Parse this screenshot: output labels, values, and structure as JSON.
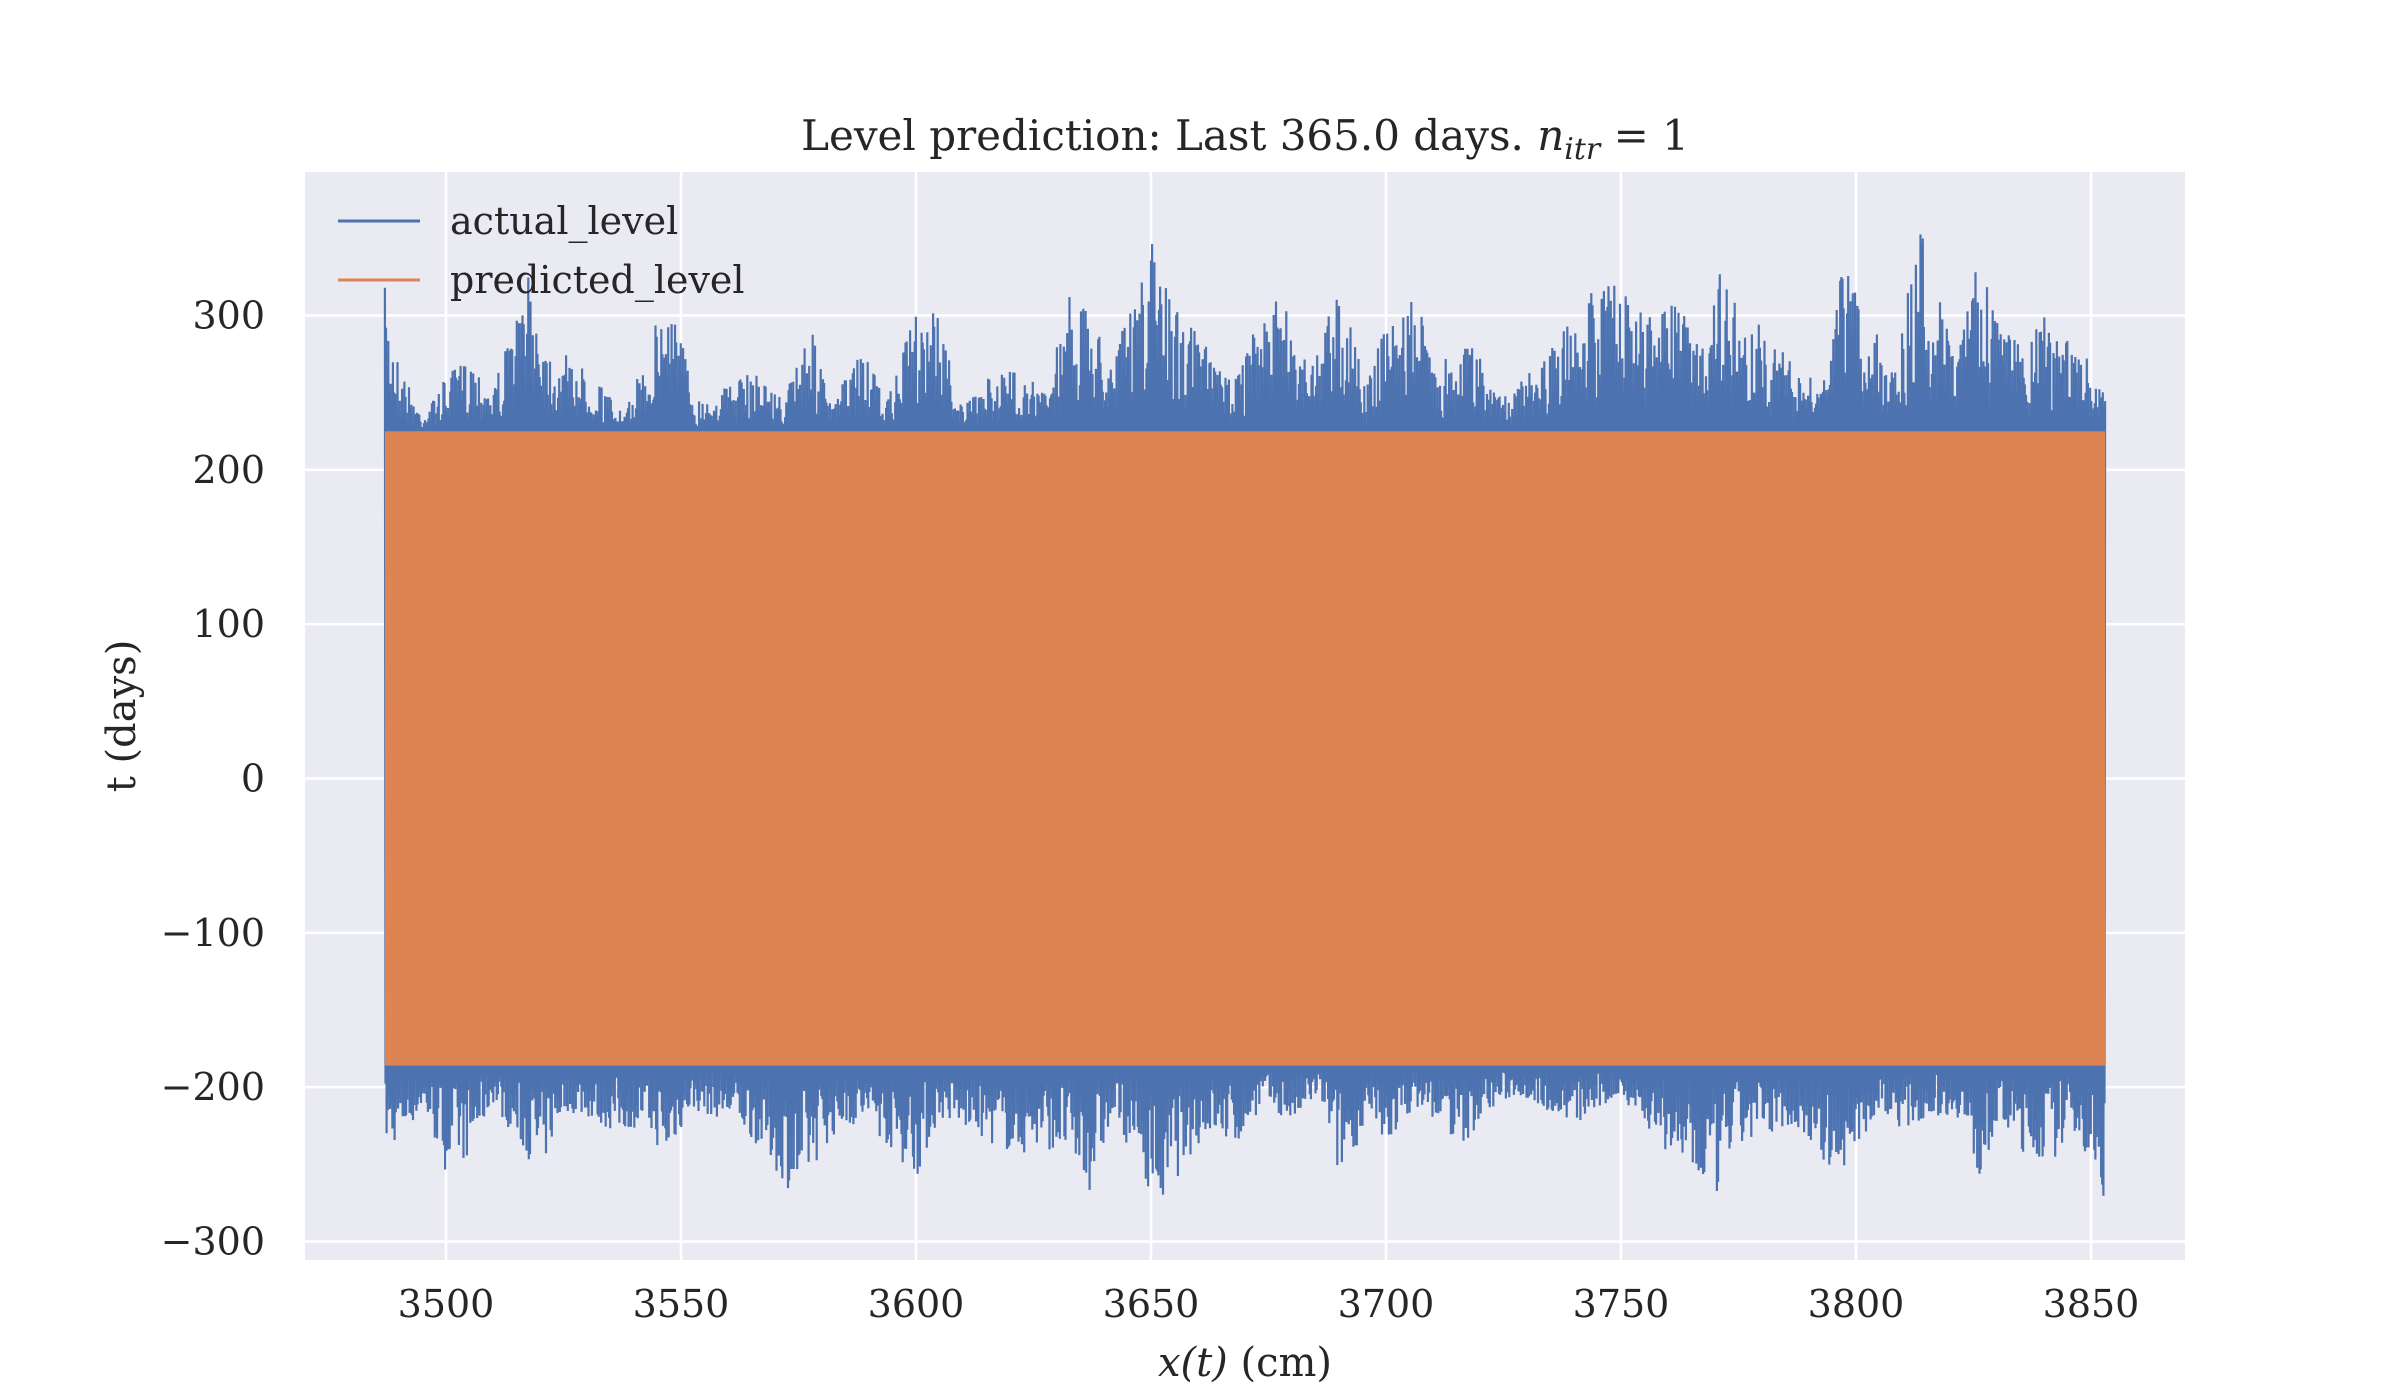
{
  "chart_data": {
    "type": "line",
    "title": "Level prediction: Last 365.0 days. ",
    "title_math": {
      "base": "n",
      "sub": "itr",
      "rhs": " = 1"
    },
    "xlabel": {
      "math": "x(t)",
      "unit": " (cm)"
    },
    "ylabel": "t (days)",
    "xlim": [
      3470,
      3870
    ],
    "ylim": [
      -312,
      393
    ],
    "xticks": [
      3500,
      3550,
      3600,
      3650,
      3700,
      3750,
      3800,
      3850
    ],
    "yticks": [
      300,
      200,
      100,
      0,
      -100,
      -200,
      -300
    ],
    "ytick_labels": [
      "300",
      "200",
      "100",
      "0",
      "−100",
      "−200",
      "−300"
    ],
    "grid": true,
    "legend_position": "top-left",
    "background_color": "#eaeaf2",
    "x_range": [
      3487,
      3853
    ],
    "series": [
      {
        "name": "actual_level",
        "color": "#4c72b0",
        "upper_envelope": [
          [
            3487,
            318
          ],
          [
            3490,
            270
          ],
          [
            3495,
            235
          ],
          [
            3500,
            260
          ],
          [
            3505,
            275
          ],
          [
            3510,
            255
          ],
          [
            3515,
            300
          ],
          [
            3518,
            330
          ],
          [
            3522,
            280
          ],
          [
            3527,
            272
          ],
          [
            3532,
            260
          ],
          [
            3538,
            235
          ],
          [
            3545,
            300
          ],
          [
            3548,
            320
          ],
          [
            3553,
            245
          ],
          [
            3560,
            255
          ],
          [
            3566,
            265
          ],
          [
            3572,
            245
          ],
          [
            3577,
            300
          ],
          [
            3582,
            240
          ],
          [
            3588,
            280
          ],
          [
            3594,
            245
          ],
          [
            3600,
            305
          ],
          [
            3604,
            310
          ],
          [
            3610,
            240
          ],
          [
            3617,
            265
          ],
          [
            3622,
            265
          ],
          [
            3628,
            250
          ],
          [
            3632,
            320
          ],
          [
            3637,
            300
          ],
          [
            3642,
            280
          ],
          [
            3647,
            310
          ],
          [
            3650,
            350
          ],
          [
            3655,
            310
          ],
          [
            3660,
            290
          ],
          [
            3666,
            260
          ],
          [
            3672,
            290
          ],
          [
            3678,
            315
          ],
          [
            3684,
            270
          ],
          [
            3690,
            325
          ],
          [
            3696,
            255
          ],
          [
            3700,
            298
          ],
          [
            3706,
            310
          ],
          [
            3712,
            270
          ],
          [
            3718,
            290
          ],
          [
            3722,
            255
          ],
          [
            3728,
            255
          ],
          [
            3734,
            275
          ],
          [
            3740,
            300
          ],
          [
            3744,
            325
          ],
          [
            3750,
            320
          ],
          [
            3755,
            300
          ],
          [
            3761,
            310
          ],
          [
            3766,
            290
          ],
          [
            3771,
            330
          ],
          [
            3776,
            300
          ],
          [
            3782,
            290
          ],
          [
            3788,
            260
          ],
          [
            3794,
            260
          ],
          [
            3797,
            335
          ],
          [
            3802,
            305
          ],
          [
            3808,
            270
          ],
          [
            3814,
            362
          ],
          [
            3820,
            290
          ],
          [
            3825,
            340
          ],
          [
            3830,
            305
          ],
          [
            3836,
            275
          ],
          [
            3840,
            305
          ],
          [
            3846,
            280
          ],
          [
            3850,
            270
          ],
          [
            3853,
            255
          ]
        ],
        "lower_envelope": [
          [
            3487,
            -240
          ],
          [
            3490,
            -235
          ],
          [
            3495,
            -215
          ],
          [
            3500,
            -255
          ],
          [
            3505,
            -245
          ],
          [
            3510,
            -210
          ],
          [
            3515,
            -235
          ],
          [
            3520,
            -258
          ],
          [
            3525,
            -215
          ],
          [
            3530,
            -220
          ],
          [
            3536,
            -230
          ],
          [
            3542,
            -225
          ],
          [
            3547,
            -248
          ],
          [
            3552,
            -215
          ],
          [
            3558,
            -220
          ],
          [
            3562,
            -225
          ],
          [
            3567,
            -240
          ],
          [
            3571,
            -258
          ],
          [
            3575,
            -275
          ],
          [
            3580,
            -240
          ],
          [
            3585,
            -225
          ],
          [
            3590,
            -225
          ],
          [
            3596,
            -245
          ],
          [
            3600,
            -260
          ],
          [
            3605,
            -220
          ],
          [
            3612,
            -230
          ],
          [
            3618,
            -240
          ],
          [
            3622,
            -245
          ],
          [
            3628,
            -240
          ],
          [
            3632,
            -245
          ],
          [
            3637,
            -268
          ],
          [
            3642,
            -220
          ],
          [
            3648,
            -255
          ],
          [
            3652,
            -282
          ],
          [
            3657,
            -250
          ],
          [
            3662,
            -230
          ],
          [
            3668,
            -240
          ],
          [
            3674,
            -210
          ],
          [
            3680,
            -225
          ],
          [
            3686,
            -205
          ],
          [
            3690,
            -260
          ],
          [
            3696,
            -225
          ],
          [
            3700,
            -240
          ],
          [
            3706,
            -212
          ],
          [
            3712,
            -225
          ],
          [
            3716,
            -240
          ],
          [
            3722,
            -215
          ],
          [
            3728,
            -205
          ],
          [
            3734,
            -215
          ],
          [
            3740,
            -225
          ],
          [
            3746,
            -215
          ],
          [
            3750,
            -205
          ],
          [
            3756,
            -230
          ],
          [
            3762,
            -250
          ],
          [
            3766,
            -265
          ],
          [
            3770,
            -275
          ],
          [
            3774,
            -240
          ],
          [
            3780,
            -235
          ],
          [
            3784,
            -225
          ],
          [
            3790,
            -235
          ],
          [
            3796,
            -262
          ],
          [
            3800,
            -240
          ],
          [
            3806,
            -215
          ],
          [
            3810,
            -228
          ],
          [
            3816,
            -218
          ],
          [
            3822,
            -220
          ],
          [
            3826,
            -262
          ],
          [
            3830,
            -225
          ],
          [
            3836,
            -245
          ],
          [
            3842,
            -248
          ],
          [
            3846,
            -225
          ],
          [
            3850,
            -255
          ],
          [
            3853,
            -275
          ]
        ]
      },
      {
        "name": "predicted_level",
        "color": "#dd8452",
        "band": [
          -186,
          225
        ]
      }
    ]
  }
}
